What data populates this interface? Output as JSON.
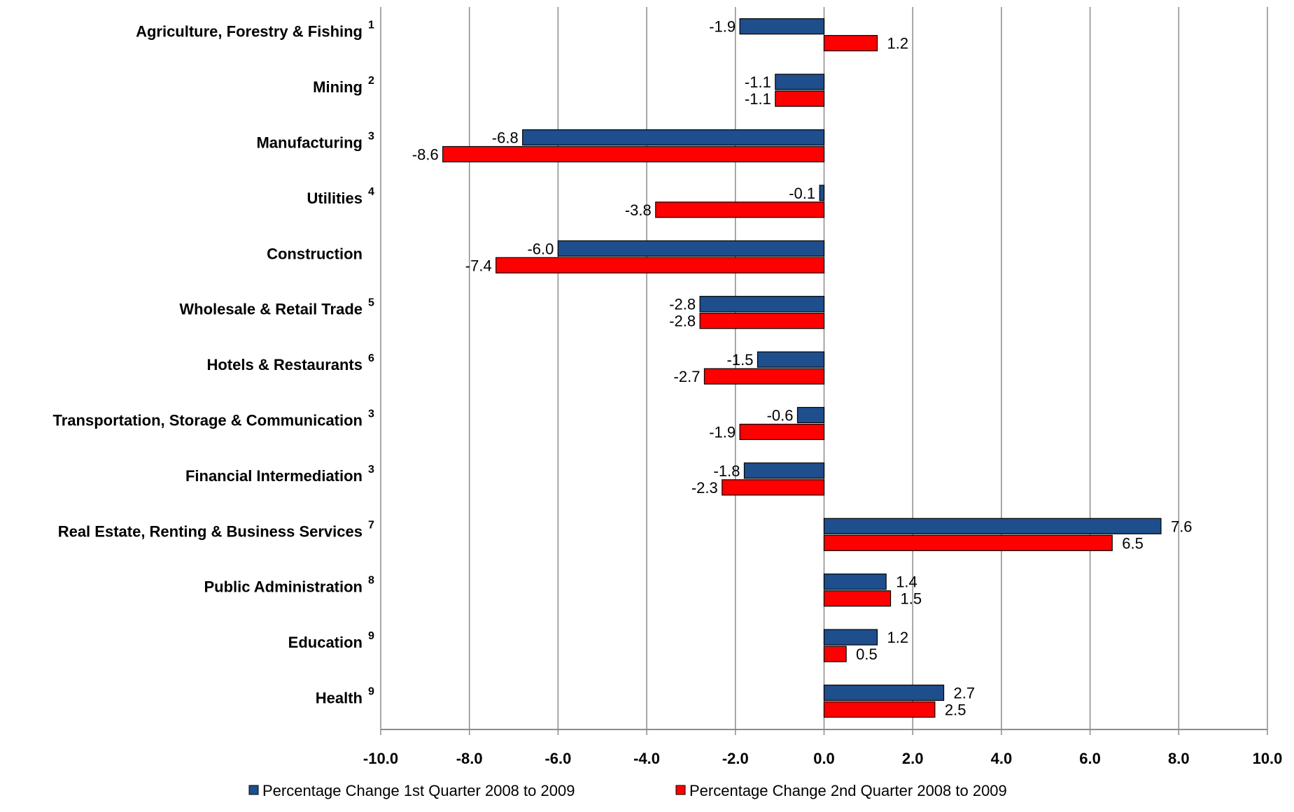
{
  "chart_data": {
    "type": "bar",
    "orientation": "horizontal",
    "categories": [
      {
        "label": "Agriculture, Forestry & Fishing",
        "note": "1"
      },
      {
        "label": "Mining",
        "note": "2"
      },
      {
        "label": "Manufacturing",
        "note": "3"
      },
      {
        "label": "Utilities",
        "note": "4"
      },
      {
        "label": "Construction",
        "note": ""
      },
      {
        "label": "Wholesale & Retail Trade",
        "note": "5"
      },
      {
        "label": "Hotels & Restaurants",
        "note": "6"
      },
      {
        "label": "Transportation, Storage & Communication",
        "note": "3"
      },
      {
        "label": "Financial Intermediation",
        "note": "3"
      },
      {
        "label": "Real Estate, Renting & Business Services",
        "note": "7"
      },
      {
        "label": "Public Administration",
        "note": "8"
      },
      {
        "label": "Education",
        "note": "9"
      },
      {
        "label": "Health",
        "note": "9"
      }
    ],
    "series": [
      {
        "name": "Percentage Change 1st Quarter 2008 to  2009",
        "color": "#1f4e8c",
        "values": [
          -1.9,
          -1.1,
          -6.8,
          -0.1,
          -6.0,
          -2.8,
          -1.5,
          -0.6,
          -1.8,
          7.6,
          1.4,
          1.2,
          2.7
        ],
        "labels": [
          "-1.9",
          "-1.1",
          "-6.8",
          "-0.1",
          "-6.0",
          "-2.8",
          "-1.5",
          "-0.6",
          "-1.8",
          "7.6",
          "1.4",
          "1.2",
          "2.7"
        ]
      },
      {
        "name": "Percentage Change 2nd Quarter 2008 to 2009",
        "color": "#ff0000",
        "values": [
          1.2,
          -1.1,
          -8.6,
          -3.8,
          -7.4,
          -2.8,
          -2.7,
          -1.9,
          -2.3,
          6.5,
          1.5,
          0.5,
          2.5
        ],
        "labels": [
          "1.2",
          "-1.1",
          "-8.6",
          "-3.8",
          "-7.4",
          "-2.8",
          "-2.7",
          "-1.9",
          "-2.3",
          "6.5",
          "1.5",
          "0.5",
          "2.5"
        ]
      }
    ],
    "xlim": [
      -10,
      10
    ],
    "x_ticks": [
      -10,
      -8,
      -6,
      -4,
      -2,
      0,
      2,
      4,
      6,
      8,
      10
    ],
    "x_tick_labels": [
      "-10.0",
      "-8.0",
      "-6.0",
      "-4.0",
      "-2.0",
      "0.0",
      "2.0",
      "4.0",
      "6.0",
      "8.0",
      "10.0"
    ],
    "grid": "vertical",
    "legend_position": "bottom",
    "title": "",
    "xlabel": "",
    "ylabel": ""
  }
}
